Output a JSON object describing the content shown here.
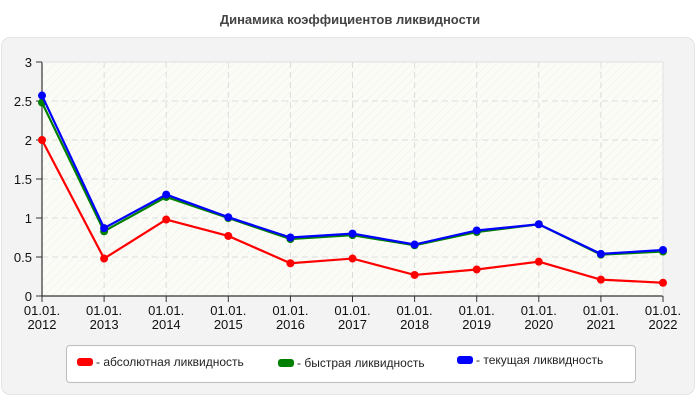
{
  "title": "Динамика коэффициентов ликвидности",
  "legend": [
    {
      "label": "- абсолютная ликвидность",
      "color": "#ff0000"
    },
    {
      "label": "- быстрая ликвидность",
      "color": "#008000"
    },
    {
      "label": "- текущая ликвидность",
      "color": "#0000ff"
    }
  ],
  "chart_data": {
    "type": "line",
    "title": "Динамика коэффициентов ликвидности",
    "xlabel": "",
    "ylabel": "",
    "categories": [
      "01.01.2012",
      "01.01.2013",
      "01.01.2014",
      "01.01.2015",
      "01.01.2016",
      "01.01.2017",
      "01.01.2018",
      "01.01.2019",
      "01.01.2020",
      "01.01.2021",
      "01.01.2022"
    ],
    "x_tick_labels": [
      [
        "01.01.",
        "2012"
      ],
      [
        "01.01.",
        "2013"
      ],
      [
        "01.01.",
        "2014"
      ],
      [
        "01.01.",
        "2015"
      ],
      [
        "01.01.",
        "2016"
      ],
      [
        "01.01.",
        "2017"
      ],
      [
        "01.01.",
        "2018"
      ],
      [
        "01.01.",
        "2019"
      ],
      [
        "01.01.",
        "2020"
      ],
      [
        "01.01.",
        "2021"
      ],
      [
        "01.01.",
        "2022"
      ]
    ],
    "y_ticks": [
      "0",
      "0.5",
      "1",
      "1.5",
      "2",
      "2.5",
      "3"
    ],
    "ylim": [
      0,
      3
    ],
    "grid": true,
    "legend_position": "bottom",
    "series": [
      {
        "name": "абсолютная ликвидность",
        "color": "#ff0000",
        "values": [
          2.0,
          0.48,
          0.98,
          0.77,
          0.42,
          0.48,
          0.27,
          0.34,
          0.44,
          0.21,
          0.17
        ]
      },
      {
        "name": "быстрая ликвидность",
        "color": "#008000",
        "values": [
          2.48,
          0.83,
          1.27,
          1.0,
          0.73,
          0.78,
          0.65,
          0.82,
          0.92,
          0.53,
          0.57
        ]
      },
      {
        "name": "текущая ликвидность",
        "color": "#0000ff",
        "values": [
          2.57,
          0.87,
          1.3,
          1.01,
          0.75,
          0.8,
          0.66,
          0.84,
          0.92,
          0.54,
          0.59
        ]
      }
    ]
  }
}
